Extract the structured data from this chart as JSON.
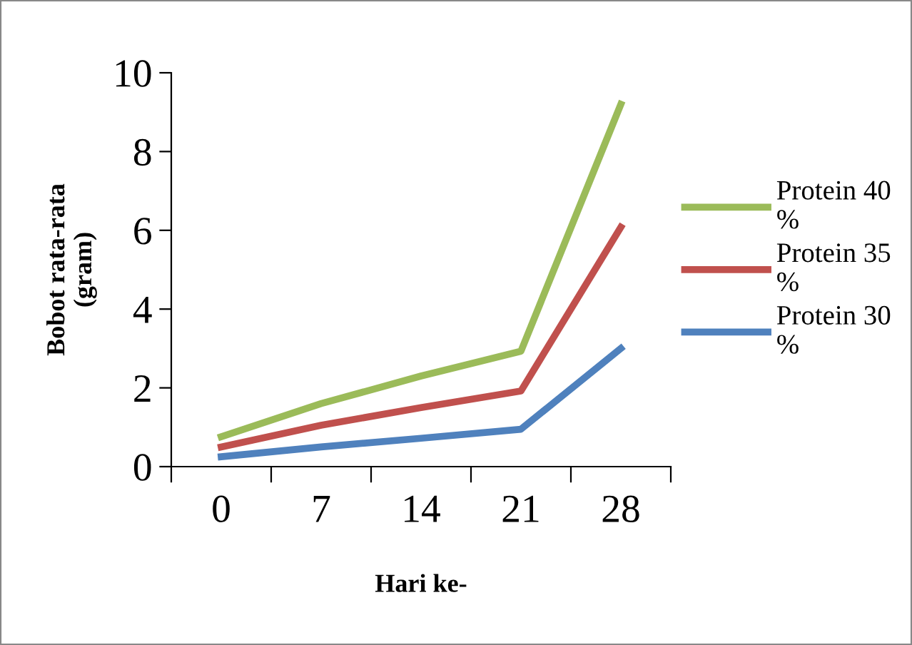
{
  "chart_data": {
    "type": "line",
    "xlabel": "Hari ke-",
    "ylabel": "Bobot rata-rata\n(gram)",
    "categories": [
      "0",
      "7",
      "14",
      "21",
      "28"
    ],
    "series": [
      {
        "name": "Protein 40 %",
        "color": "#9bbb59",
        "values": [
          0.76,
          1.6,
          2.3,
          2.93,
          9.2
        ]
      },
      {
        "name": "Protein 35 %",
        "color": "#c0504d",
        "values": [
          0.5,
          1.05,
          1.5,
          1.92,
          6.08
        ]
      },
      {
        "name": "Protein 30 %",
        "color": "#4f81bd",
        "values": [
          0.25,
          0.5,
          0.72,
          0.95,
          3.0
        ]
      }
    ],
    "ylim": [
      0,
      10
    ],
    "yticks": [
      0,
      2,
      4,
      6,
      8,
      10
    ],
    "grid": false,
    "legend": "right",
    "marker": "none",
    "line_style": "solid"
  }
}
